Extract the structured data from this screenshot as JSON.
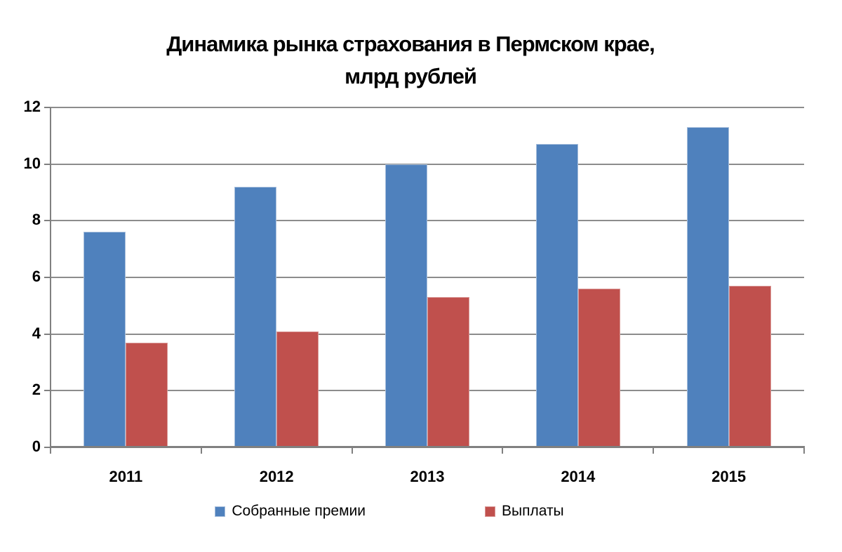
{
  "title_line1": "Динамика рынка страхования в Пермском крае,",
  "title_line2": "млрд рублей",
  "chart_data": {
    "type": "bar",
    "title": "Динамика рынка страхования в Пермском крае, млрд рублей",
    "categories": [
      "2011",
      "2012",
      "2013",
      "2014",
      "2015"
    ],
    "series": [
      {
        "key": "premiums",
        "name": "Собранные премии",
        "color": "#4F81BD",
        "border_color": "#A8BFDC",
        "values": [
          7.6,
          9.2,
          10.0,
          10.7,
          11.3
        ]
      },
      {
        "key": "payouts",
        "name": "Выплаты",
        "color": "#C0504D",
        "border_color": "#D99795",
        "values": [
          3.7,
          4.1,
          5.3,
          5.6,
          5.7
        ]
      }
    ],
    "xlabel": "",
    "ylabel": "",
    "ylim": [
      0,
      12
    ],
    "yticks": [
      0,
      2,
      4,
      6,
      8,
      10,
      12
    ],
    "grid": true,
    "legend_position": "bottom",
    "gridline_color": "#8C8C8C",
    "axis_color": "#808080"
  }
}
